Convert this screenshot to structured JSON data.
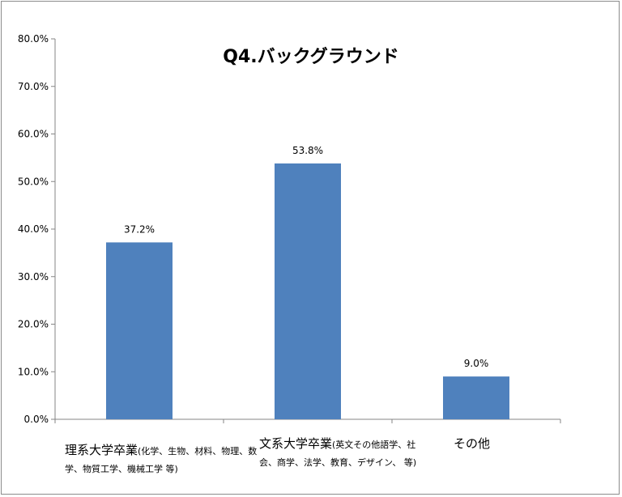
{
  "chart_data": {
    "type": "bar",
    "title": "Q4.バックグラウンド",
    "categories": [
      "理系大学卒業(化学、生物、材料、物理、数学、物質工学、機械工学 等)",
      "文系大学卒業(英文その他語学、社会、商学、法学、教育、デザイン、 等)",
      "その他"
    ],
    "category_main": [
      "理系大学卒業",
      "文系大学卒業",
      "その他"
    ],
    "category_detail": [
      "(化学、生物、材料、物理、数学、物質工学、機械工学 等)",
      "(英文その他語学、社会、商学、法学、教育、デザイン、 等)",
      ""
    ],
    "values": [
      37.2,
      53.8,
      9.0
    ],
    "data_labels": [
      "37.2%",
      "53.8%",
      "9.0%"
    ],
    "ylim": [
      0,
      80
    ],
    "yticks": [
      "0.0%",
      "10.0%",
      "20.0%",
      "30.0%",
      "40.0%",
      "50.0%",
      "60.0%",
      "70.0%",
      "80.0%"
    ],
    "grid": false,
    "legend": "none",
    "bar_color": "#4f81bd"
  }
}
